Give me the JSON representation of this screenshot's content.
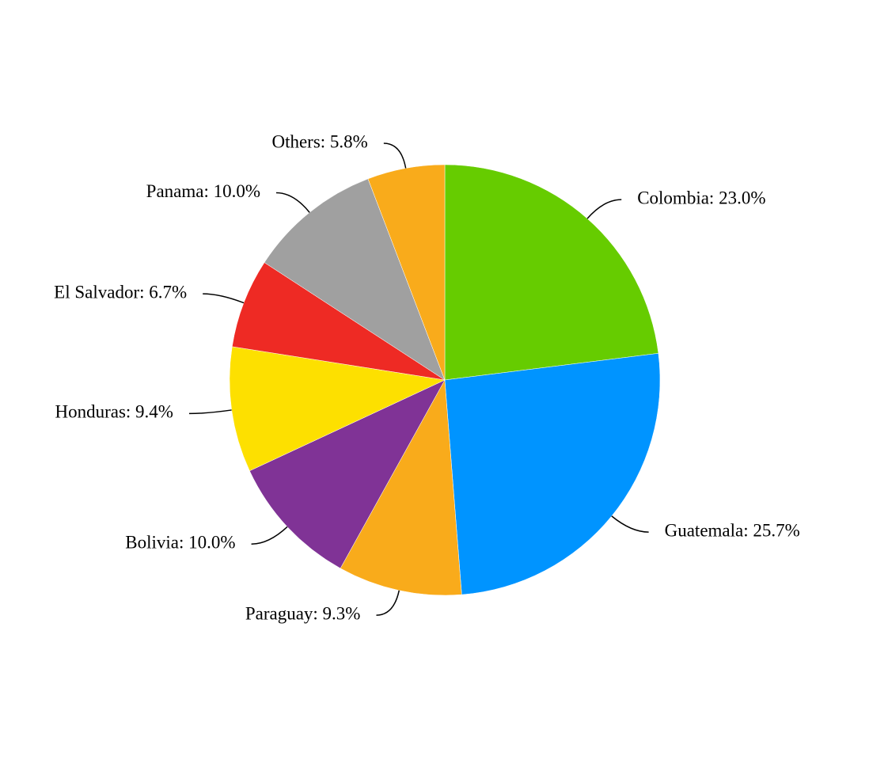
{
  "chart_data": {
    "type": "pie",
    "value_labels": [
      "Colombia: 23.0%",
      "Guatemala: 25.7%",
      "Paraguay: 9.3%",
      "Bolivia: 10.0%",
      "Honduras: 9.4%",
      "El Salvador: 6.7%",
      "Panama: 10.0%",
      "Others: 5.8%"
    ],
    "values": [
      23.0,
      25.7,
      9.3,
      10.0,
      9.4,
      6.7,
      10.0,
      5.8
    ],
    "colors": [
      "#66cc00",
      "#0094ff",
      "#f9ab1b",
      "#803396",
      "#fde000",
      "#ee2a24",
      "#a0a0a0",
      "#f9ab1b"
    ]
  }
}
